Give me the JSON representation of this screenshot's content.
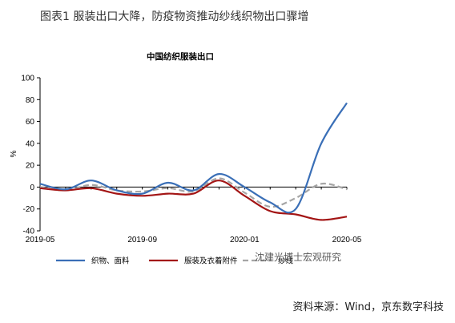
{
  "figure_title": "图表1 服装出口大降，防疫物资推动纱线织物出口骤增",
  "source": "资料来源：Wind，京东数字科技",
  "watermark": "沈建光博士宏观研究",
  "chart_data": {
    "type": "line",
    "title": "中国纺织服装出口",
    "ylabel": "%",
    "xlabel": "",
    "ylim": [
      -40,
      100
    ],
    "yticks": [
      "100",
      "80",
      "60",
      "40",
      "20",
      "0",
      "-20",
      "-40"
    ],
    "xticks": [
      "2019-05",
      "2019-09",
      "2020-01",
      "2020-05"
    ],
    "x": [
      "2019-05",
      "2019-06",
      "2019-07",
      "2019-08",
      "2019-09",
      "2019-10",
      "2019-11",
      "2019-12",
      "2020-01",
      "2020-02",
      "2020-03",
      "2020-04",
      "2020-05"
    ],
    "grid": false,
    "legend_position": "bottom",
    "series": [
      {
        "name": "织物、面料",
        "color": "#3a6fb7",
        "values": [
          3,
          -2,
          6,
          -3,
          -6,
          4,
          -3,
          12,
          0,
          -14,
          -20,
          40,
          77
        ]
      },
      {
        "name": "服装及衣着附件",
        "color": "#a31515",
        "values": [
          -1,
          -3,
          -1,
          -6,
          -8,
          -6,
          -6,
          6,
          -8,
          -22,
          -25,
          -30,
          -27
        ]
      },
      {
        "name": "纱线",
        "color": "#a6a6a6",
        "dashed": true,
        "values": [
          0,
          -3,
          2,
          -3,
          -4,
          -1,
          -4,
          8,
          -5,
          -18,
          -10,
          3,
          -2
        ]
      }
    ]
  }
}
